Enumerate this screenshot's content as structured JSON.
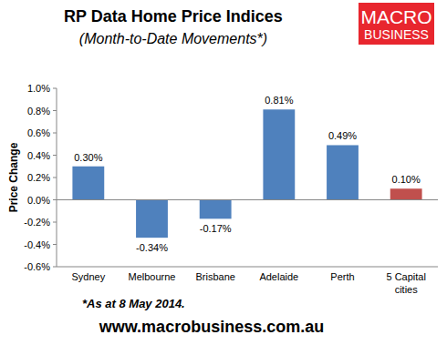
{
  "chart_data": {
    "type": "bar",
    "title": "RP Data Home Price Indices",
    "subtitle": "(Month-to-Date Movements*)",
    "y_label": "Price Change",
    "annotations": [
      "*As at 8 May 2014.",
      "www.macrobusiness.com.au",
      "MACRO",
      "BUSINESS"
    ],
    "categories": [
      "Sydney",
      "Melbourne",
      "Brisbane",
      "Adelaide",
      "Perth",
      "5 Capital cities"
    ],
    "values": [
      0.3,
      -0.34,
      -0.17,
      0.81,
      0.49,
      0.1
    ],
    "value_labels": [
      "0.30%",
      "-0.34%",
      "-0.17%",
      "0.81%",
      "0.49%",
      "0.10%"
    ],
    "colors": [
      "#4f81bd",
      "#4f81bd",
      "#4f81bd",
      "#4f81bd",
      "#4f81bd",
      "#c0504d"
    ],
    "ylim": [
      -0.6,
      1.0
    ],
    "yticks": [
      {
        "value": -0.6,
        "label": "-0.6%"
      },
      {
        "value": -0.4,
        "label": "-0.4%"
      },
      {
        "value": -0.2,
        "label": "-0.2%"
      },
      {
        "value": 0,
        "label": "0.0%"
      },
      {
        "value": 0.2,
        "label": "0.2%"
      },
      {
        "value": 0.4,
        "label": "0.4%"
      },
      {
        "value": 0.6,
        "label": "0.6%"
      },
      {
        "value": 0.8,
        "label": "0.8%"
      },
      {
        "value": 1.0,
        "label": "1.0%"
      }
    ],
    "grid": false,
    "data_labels": true
  }
}
